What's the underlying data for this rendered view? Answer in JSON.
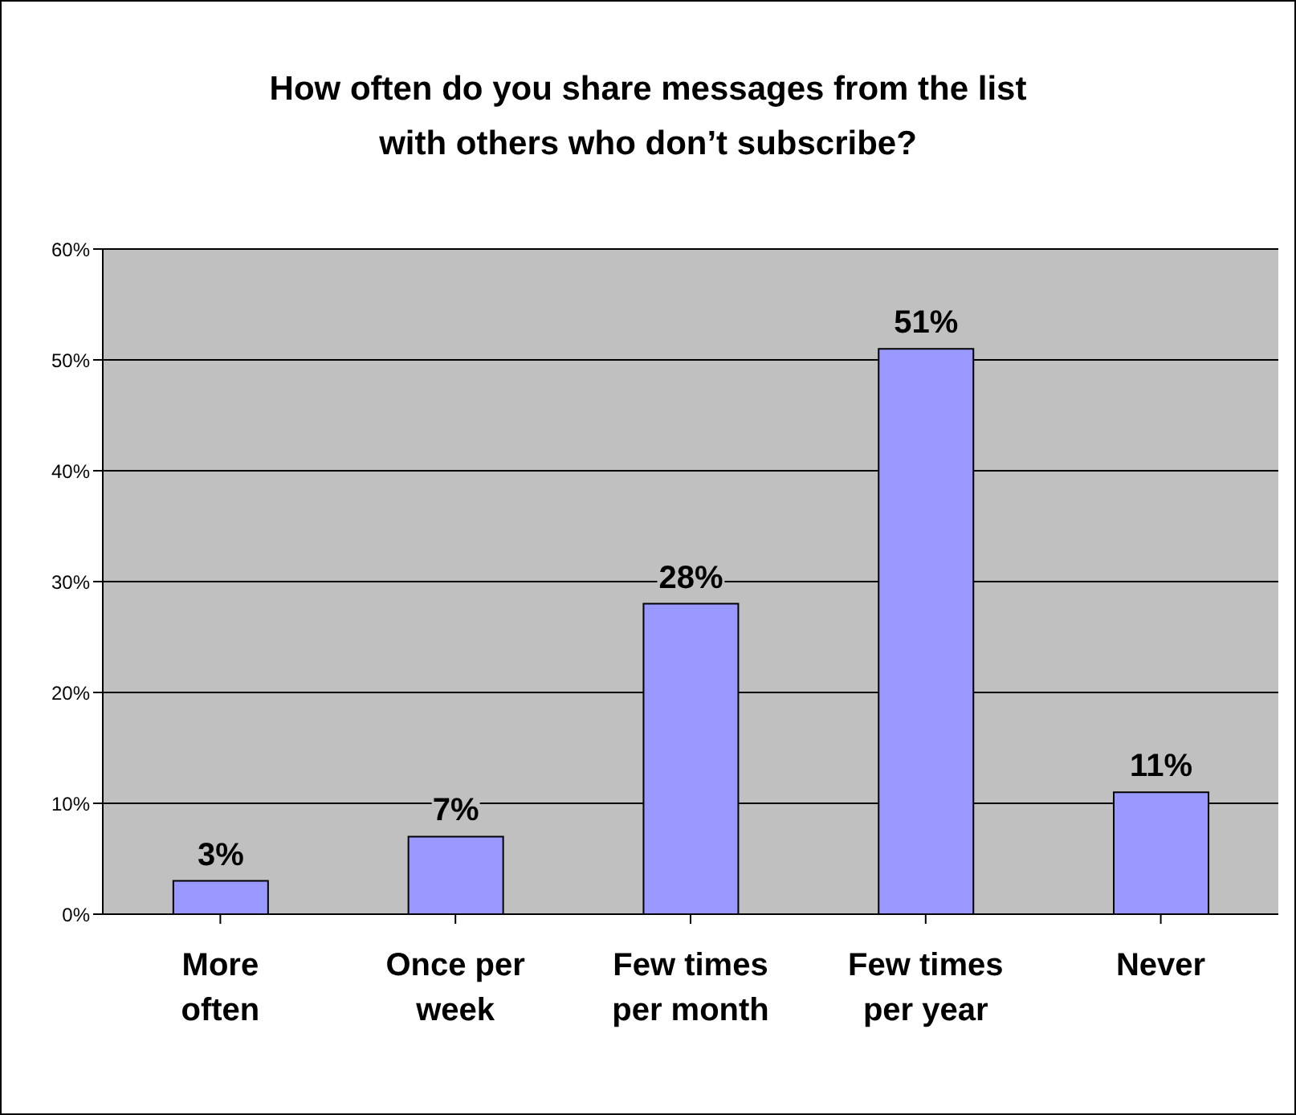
{
  "chart_data": {
    "type": "bar",
    "title": "How often do you share messages from the list with others who don’t subscribe?",
    "categories": [
      "More often",
      "Once per week",
      "Few times per month",
      "Few times per year",
      "Never"
    ],
    "values": [
      3,
      7,
      28,
      51,
      11
    ],
    "color": "#9999ff",
    "value_labels": [
      "3%",
      "7%",
      "28%",
      "51%",
      "11%"
    ],
    "ylim": [
      0,
      60
    ],
    "yticks": [
      {
        "value": 0,
        "label": "0%"
      },
      {
        "value": 10,
        "label": "10%"
      },
      {
        "value": 20,
        "label": "20%"
      },
      {
        "value": 30,
        "label": "30%"
      },
      {
        "value": 40,
        "label": "40%"
      },
      {
        "value": 50,
        "label": "50%"
      },
      {
        "value": 60,
        "label": "60%"
      }
    ],
    "grid": "y",
    "legend": false
  }
}
